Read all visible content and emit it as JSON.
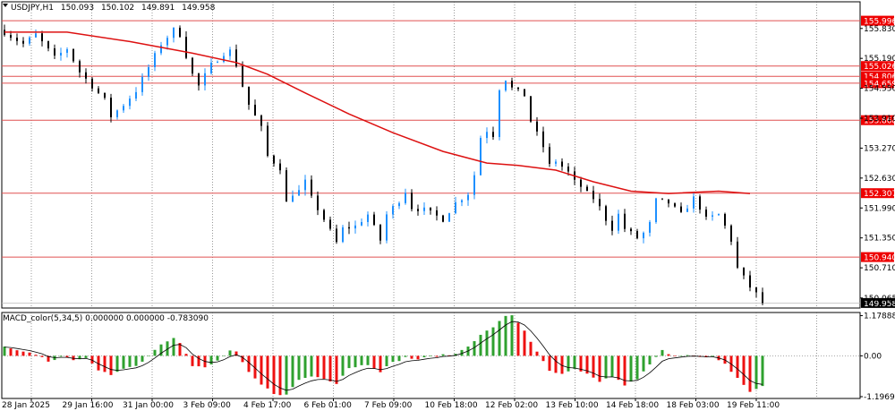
{
  "symbol_header": {
    "symbol": "USDJPY,H1",
    "open": "150.093",
    "high": "150.102",
    "low": "149.891",
    "close": "149.958"
  },
  "macd_header": "MACD_color(5,34,5) 0.000000 0.000000 -0.783090",
  "colors": {
    "bull": "#1e90ff",
    "bear": "#000000",
    "ma": "#dd1111",
    "level": "#e05050",
    "tag": "#ee0000",
    "hist_up": "#2fa12f",
    "hist_down": "#ee1111",
    "signal": "#000000",
    "grid": "#555555"
  },
  "chart_data": [
    {
      "type": "candlestick",
      "title": "",
      "ylim": [
        149.85,
        156.4
      ],
      "y_ticks": [
        "155.830",
        "155.190",
        "154.550",
        "153.910",
        "153.270",
        "152.630",
        "151.990",
        "151.350",
        "150.710",
        "150.065"
      ],
      "x_ticks": [
        "28 Jan 2025",
        "29 Jan 16:00",
        "31 Jan 00:00",
        "3 Feb 09:00",
        "4 Feb 17:00",
        "6 Feb 01:00",
        "7 Feb 09:00",
        "10 Feb 18:00",
        "12 Feb 02:00",
        "13 Feb 10:00",
        "14 Feb 18:00",
        "18 Feb 03:00",
        "19 Feb 11:00"
      ],
      "bar_count": 122,
      "price_path": [
        [
          0,
          155.75
        ],
        [
          3,
          155.5
        ],
        [
          5,
          155.7
        ],
        [
          8,
          155.2
        ],
        [
          10,
          155.4
        ],
        [
          12,
          154.9
        ],
        [
          14,
          154.6
        ],
        [
          16,
          154.3
        ],
        [
          17,
          153.95
        ],
        [
          19,
          154.2
        ],
        [
          21,
          154.5
        ],
        [
          23,
          155.0
        ],
        [
          25,
          155.5
        ],
        [
          27,
          155.8
        ],
        [
          28,
          155.7
        ],
        [
          29,
          155.25
        ],
        [
          30,
          154.85
        ],
        [
          31,
          154.6
        ],
        [
          33,
          155.05
        ],
        [
          35,
          155.3
        ],
        [
          36,
          155.35
        ],
        [
          37,
          155.05
        ],
        [
          38,
          154.6
        ],
        [
          39,
          154.2
        ],
        [
          41,
          153.7
        ],
        [
          42,
          153.1
        ],
        [
          44,
          152.85
        ],
        [
          45,
          152.1
        ],
        [
          46,
          152.3
        ],
        [
          47,
          152.35
        ],
        [
          48,
          152.55
        ],
        [
          49,
          152.2
        ],
        [
          51,
          151.75
        ],
        [
          53,
          151.25
        ],
        [
          54,
          151.55
        ],
        [
          56,
          151.6
        ],
        [
          58,
          151.85
        ],
        [
          60,
          151.3
        ],
        [
          61,
          151.85
        ],
        [
          63,
          152.15
        ],
        [
          64,
          152.35
        ],
        [
          65,
          152.0
        ],
        [
          67,
          151.95
        ],
        [
          70,
          151.75
        ],
        [
          72,
          152.1
        ],
        [
          74,
          152.3
        ],
        [
          75,
          152.7
        ],
        [
          76,
          153.5
        ],
        [
          77,
          153.65
        ],
        [
          78,
          153.55
        ],
        [
          79,
          154.55
        ],
        [
          80,
          154.75
        ],
        [
          81,
          154.55
        ],
        [
          83,
          154.4
        ],
        [
          84,
          153.85
        ],
        [
          86,
          153.3
        ],
        [
          87,
          152.9
        ],
        [
          88,
          153.0
        ],
        [
          90,
          152.75
        ],
        [
          91,
          152.55
        ],
        [
          92,
          152.45
        ],
        [
          93,
          152.3
        ],
        [
          94,
          152.2
        ],
        [
          95,
          152.0
        ],
        [
          96,
          151.75
        ],
        [
          97,
          151.55
        ],
        [
          98,
          151.85
        ],
        [
          99,
          151.55
        ],
        [
          101,
          151.35
        ],
        [
          102,
          151.45
        ],
        [
          103,
          151.65
        ],
        [
          104,
          152.15
        ],
        [
          106,
          152.1
        ],
        [
          108,
          151.85
        ],
        [
          110,
          152.2
        ],
        [
          111,
          152.0
        ],
        [
          112,
          151.75
        ],
        [
          114,
          151.85
        ],
        [
          115,
          151.6
        ],
        [
          116,
          151.3
        ],
        [
          117,
          150.7
        ],
        [
          119,
          150.3
        ],
        [
          120,
          150.15
        ],
        [
          121,
          149.96
        ]
      ],
      "moving_average": [
        [
          0,
          155.75
        ],
        [
          10,
          155.75
        ],
        [
          20,
          155.55
        ],
        [
          30,
          155.3
        ],
        [
          37,
          155.1
        ],
        [
          42,
          154.85
        ],
        [
          48,
          154.45
        ],
        [
          55,
          154.0
        ],
        [
          62,
          153.6
        ],
        [
          70,
          153.2
        ],
        [
          77,
          152.95
        ],
        [
          82,
          152.9
        ],
        [
          88,
          152.8
        ],
        [
          94,
          152.55
        ],
        [
          100,
          152.35
        ],
        [
          106,
          152.3
        ],
        [
          114,
          152.35
        ],
        [
          119,
          152.3
        ]
      ],
      "current_price": "149.958",
      "levels": [
        {
          "value": 155.996,
          "label": "155.996"
        },
        {
          "value": 155.026,
          "label": "155.026"
        },
        {
          "value": 154.806,
          "label": "154.806"
        },
        {
          "value": 154.659,
          "label": "154.659"
        },
        {
          "value": 153.868,
          "label": "153.868"
        },
        {
          "value": 152.307,
          "label": "152.307"
        },
        {
          "value": 150.94,
          "label": "150.940"
        }
      ]
    },
    {
      "type": "bar",
      "title": "MACD_color(5,34,5)",
      "ylim": [
        -1.25,
        1.27
      ],
      "y_ticks": [
        {
          "value": 1.178881,
          "label": "1.178881"
        },
        {
          "value": 0.0,
          "label": "0.00"
        },
        {
          "value": -1.196945,
          "label": "-1.196945"
        }
      ],
      "histogram_path": [
        [
          0,
          0.25
        ],
        [
          3,
          0.1
        ],
        [
          5,
          0.05
        ],
        [
          7,
          -0.15
        ],
        [
          9,
          -0.05
        ],
        [
          11,
          -0.1
        ],
        [
          13,
          -0.05
        ],
        [
          15,
          -0.45
        ],
        [
          17,
          -0.55
        ],
        [
          19,
          -0.35
        ],
        [
          21,
          -0.3
        ],
        [
          23,
          0.0
        ],
        [
          25,
          0.35
        ],
        [
          27,
          0.55
        ],
        [
          28,
          0.4
        ],
        [
          30,
          -0.3
        ],
        [
          32,
          -0.35
        ],
        [
          34,
          -0.15
        ],
        [
          36,
          0.15
        ],
        [
          37,
          0.1
        ],
        [
          39,
          -0.5
        ],
        [
          41,
          -0.85
        ],
        [
          43,
          -1.1
        ],
        [
          45,
          -1.15
        ],
        [
          47,
          -0.7
        ],
        [
          49,
          -0.6
        ],
        [
          51,
          -0.65
        ],
        [
          53,
          -0.8
        ],
        [
          55,
          -0.35
        ],
        [
          58,
          -0.25
        ],
        [
          60,
          -0.45
        ],
        [
          62,
          -0.2
        ],
        [
          64,
          -0.05
        ],
        [
          66,
          -0.1
        ],
        [
          69,
          0.0
        ],
        [
          72,
          0.05
        ],
        [
          74,
          0.3
        ],
        [
          76,
          0.6
        ],
        [
          78,
          0.85
        ],
        [
          80,
          1.15
        ],
        [
          81,
          1.2
        ],
        [
          83,
          0.75
        ],
        [
          85,
          0.1
        ],
        [
          87,
          -0.45
        ],
        [
          89,
          -0.55
        ],
        [
          91,
          -0.4
        ],
        [
          93,
          -0.55
        ],
        [
          95,
          -0.75
        ],
        [
          97,
          -0.6
        ],
        [
          99,
          -0.85
        ],
        [
          101,
          -0.7
        ],
        [
          103,
          -0.25
        ],
        [
          105,
          0.15
        ],
        [
          107,
          0.0
        ],
        [
          109,
          0.05
        ],
        [
          111,
          -0.05
        ],
        [
          113,
          -0.05
        ],
        [
          115,
          -0.25
        ],
        [
          117,
          -0.65
        ],
        [
          119,
          -1.05
        ],
        [
          121,
          -0.9
        ]
      ]
    }
  ]
}
